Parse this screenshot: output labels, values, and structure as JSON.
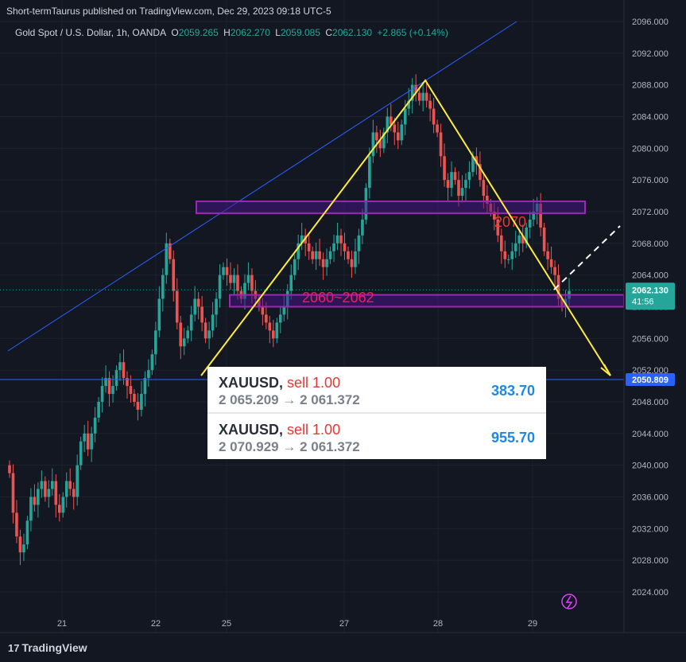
{
  "header": {
    "publisher_line": "Short-termTaurus published on TradingView.com, Dec 29, 2023 09:18 UTC-5"
  },
  "symbol_bar": {
    "name": "Gold Spot / U.S. Dollar, 1h, OANDA",
    "o_label": "O",
    "o_value": "2059.265",
    "h_label": "H",
    "h_value": "2062.270",
    "l_label": "L",
    "l_value": "2059.085",
    "c_label": "C",
    "c_value": "2062.130",
    "change": "+2.865 (+0.14%)"
  },
  "colors": {
    "background": "#131722",
    "up": "#26a69a",
    "down": "#ef5350",
    "trend_line": "#2962ff",
    "pattern_line": "#ffeb3b",
    "zone_border": "#9c27b0",
    "zone_fill": "#4a148c",
    "price_tag": "#26a69a",
    "support_tag": "#2962ff"
  },
  "chart_data": {
    "type": "candlestick",
    "y_axis_ticks": [
      "2096.000",
      "2092.000",
      "2088.000",
      "2084.000",
      "2080.000",
      "2076.000",
      "2072.000",
      "2068.000",
      "2064.000",
      "2060.000",
      "2056.000",
      "2052.000",
      "2048.000",
      "2044.000",
      "2040.000",
      "2036.000",
      "2032.000",
      "2028.000",
      "2024.000"
    ],
    "x_axis_ticks": [
      "21",
      "22",
      "25",
      "27",
      "28",
      "29"
    ],
    "current_price": "2062.130",
    "countdown": "41:56",
    "support_price": "2050.809",
    "zone_upper_label": "2070",
    "zone_lower_label": "2060~2062",
    "ylim": [
      2022,
      2098
    ],
    "close_path": [
      2039,
      2034,
      2031,
      2029,
      2030,
      2033,
      2036,
      2035,
      2037,
      2038,
      2036,
      2037,
      2038,
      2035,
      2034,
      2036,
      2038,
      2037,
      2036,
      2040,
      2043,
      2044,
      2042,
      2044,
      2046,
      2048,
      2050,
      2051,
      2049,
      2050,
      2052,
      2053,
      2051,
      2050,
      2049,
      2048,
      2047,
      2049,
      2051,
      2052,
      2054,
      2057,
      2061,
      2064,
      2068,
      2066,
      2062,
      2058,
      2055,
      2056,
      2057,
      2059,
      2061,
      2060,
      2058,
      2056,
      2057,
      2059,
      2061,
      2064,
      2065,
      2064,
      2063,
      2064,
      2062,
      2061,
      2063,
      2064,
      2062,
      2061,
      2060,
      2059,
      2058,
      2057,
      2056,
      2058,
      2059,
      2060,
      2062,
      2064,
      2066,
      2068,
      2069,
      2068,
      2067,
      2066,
      2067,
      2066,
      2065,
      2066,
      2067,
      2068,
      2069,
      2068,
      2067,
      2066,
      2065,
      2067,
      2069,
      2071,
      2075,
      2079,
      2082,
      2081,
      2080,
      2082,
      2084,
      2083,
      2082,
      2081,
      2083,
      2085,
      2086,
      2088,
      2087,
      2086,
      2087,
      2086,
      2085,
      2083,
      2082,
      2079,
      2076,
      2075,
      2077,
      2076,
      2074,
      2075,
      2076,
      2077,
      2079,
      2078,
      2076,
      2074,
      2073,
      2072,
      2071,
      2069,
      2067,
      2066,
      2066,
      2067,
      2068,
      2069,
      2068,
      2070,
      2071,
      2072,
      2073,
      2070,
      2067,
      2066,
      2065,
      2064,
      2061,
      2060,
      2061,
      2062
    ]
  },
  "trades": [
    {
      "symbol": "XAUUSD,",
      "side": "sell 1.00",
      "route": "2 065.209 → 2 061.372",
      "pnl": "383.70"
    },
    {
      "symbol": "XAUUSD,",
      "side": "sell 1.00",
      "route": "2 070.929 → 2 061.372",
      "pnl": "955.70"
    }
  ],
  "footer": {
    "brand": "TradingView",
    "logo_glyph": "17"
  }
}
